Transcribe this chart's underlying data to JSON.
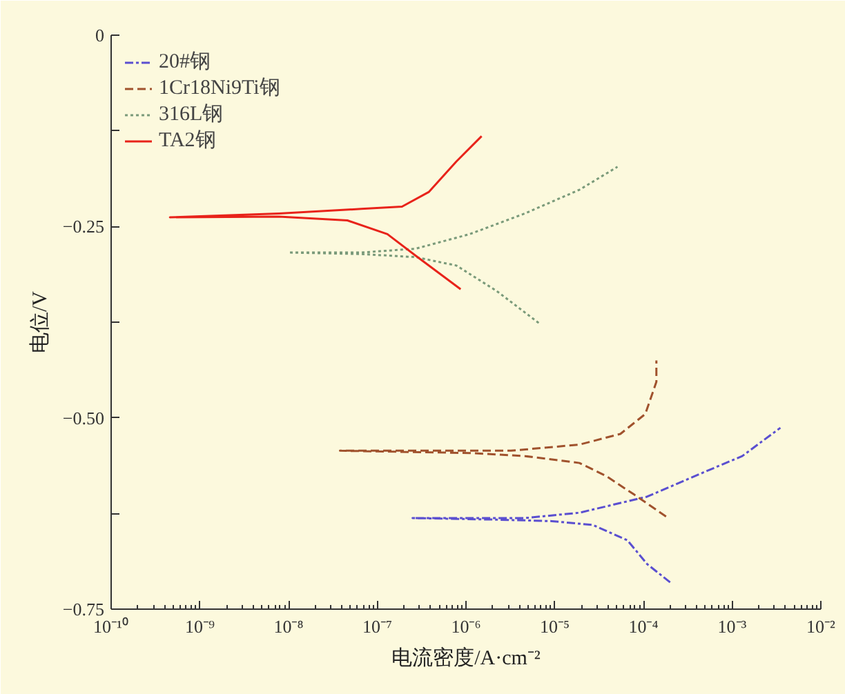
{
  "chart_data": {
    "type": "line",
    "xlabel": "电流密度/A·cm⁻²",
    "ylabel": "电位/V",
    "log": "x",
    "grid": false,
    "legend": "top left",
    "xlim": [
      1e-10,
      0.01
    ],
    "ylim": [
      -0.75,
      0
    ],
    "xticks": [
      {
        "value": 1e-10,
        "label": "10⁻¹⁰"
      },
      {
        "value": 1e-09,
        "label": "10⁻⁹"
      },
      {
        "value": 1e-08,
        "label": "10⁻⁸"
      },
      {
        "value": 1e-07,
        "label": "10⁻⁷"
      },
      {
        "value": 1e-06,
        "label": "10⁻⁶"
      },
      {
        "value": 1e-05,
        "label": "10⁻⁵"
      },
      {
        "value": 0.0001,
        "label": "10⁻⁴"
      },
      {
        "value": 0.001,
        "label": "10⁻³"
      },
      {
        "value": 0.01,
        "label": "10⁻²"
      }
    ],
    "yticks": [
      0,
      {
        "value": -0.125,
        "label": null
      },
      {
        "value": -0.25,
        "label": "−0.25"
      },
      {
        "value": -0.375,
        "label": null
      },
      {
        "value": -0.5,
        "label": "−0.50"
      },
      {
        "value": -0.625,
        "label": null
      },
      {
        "value": -0.75,
        "label": "−0.75"
      }
    ],
    "series": [
      {
        "name": "20#钢",
        "color": "#5a4fd0",
        "line_style": "dashdot",
        "x": [
          0.0002,
          0.00011,
          6.6e-05,
          2.7e-05,
          9.3e-06,
          2.2e-06,
          2.5e-07,
          4.6e-06,
          1.9e-05,
          0.00011,
          0.00046,
          0.0013,
          0.0035
        ],
        "values": [
          -0.715,
          -0.691,
          -0.66,
          -0.64,
          -0.635,
          -0.633,
          -0.631,
          -0.631,
          -0.624,
          -0.603,
          -0.572,
          -0.55,
          -0.513
        ]
      },
      {
        "name": "1Cr18Ni9Ti钢",
        "color": "#a0522d",
        "line_style": "dashed",
        "x": [
          0.00018,
          7.8e-05,
          3.8e-05,
          1.9e-05,
          4.6e-06,
          1.1e-06,
          3.8e-08,
          3.2e-06,
          1.9e-05,
          5.5e-05,
          0.000105,
          0.00014,
          0.00014
        ],
        "values": [
          -0.629,
          -0.6,
          -0.576,
          -0.559,
          -0.55,
          -0.546,
          -0.543,
          -0.543,
          -0.535,
          -0.521,
          -0.495,
          -0.453,
          -0.425
        ]
      },
      {
        "name": "316L钢",
        "color": "#7a9a7a",
        "line_style": "dotted",
        "x": [
          6.6e-06,
          2.2e-06,
          7.8e-07,
          2.7e-07,
          6.6e-08,
          1e-08,
          6.6e-08,
          2.7e-07,
          1.1e-06,
          4.6e-06,
          1.9e-05,
          5.1e-05
        ],
        "values": [
          -0.376,
          -0.334,
          -0.301,
          -0.29,
          -0.286,
          -0.284,
          -0.284,
          -0.279,
          -0.26,
          -0.233,
          -0.202,
          -0.172
        ]
      },
      {
        "name": "TA2钢",
        "color": "#e8231a",
        "line_style": "solid",
        "x": [
          8.7e-07,
          2.7e-07,
          1.3e-07,
          4.6e-08,
          7.8e-09,
          4.6e-10,
          7.8e-09,
          6.6e-08,
          1.9e-07,
          3.8e-07,
          7.8e-07,
          1.5e-06
        ],
        "values": [
          -0.332,
          -0.288,
          -0.26,
          -0.242,
          -0.237,
          -0.238,
          -0.233,
          -0.227,
          -0.224,
          -0.205,
          -0.165,
          -0.132
        ]
      }
    ]
  }
}
